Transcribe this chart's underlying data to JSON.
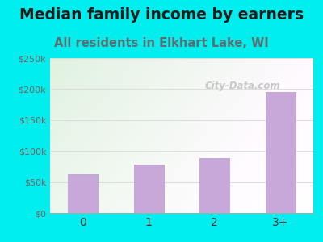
{
  "categories": [
    "0",
    "1",
    "2",
    "3+"
  ],
  "values": [
    62000,
    78000,
    88000,
    195000
  ],
  "bar_color": "#c8a8d8",
  "bar_edge_color": "#b898c8",
  "title": "Median family income by earners",
  "subtitle": "All residents in Elkhart Lake, WI",
  "title_fontsize": 13.5,
  "subtitle_fontsize": 10.5,
  "title_color": "#1a1a1a",
  "subtitle_color": "#5a7070",
  "background_color": "#00eeee",
  "ylim": [
    0,
    250000
  ],
  "yticks": [
    0,
    50000,
    100000,
    150000,
    200000,
    250000
  ],
  "ytick_labels": [
    "$0",
    "$50k",
    "$100k",
    "$150k",
    "$200k",
    "$250k"
  ],
  "ytick_color": "#7a6060",
  "xtick_color": "#333333",
  "watermark": "City-Data.com",
  "grid_color": "#d8d8d8",
  "bar_width": 0.45
}
